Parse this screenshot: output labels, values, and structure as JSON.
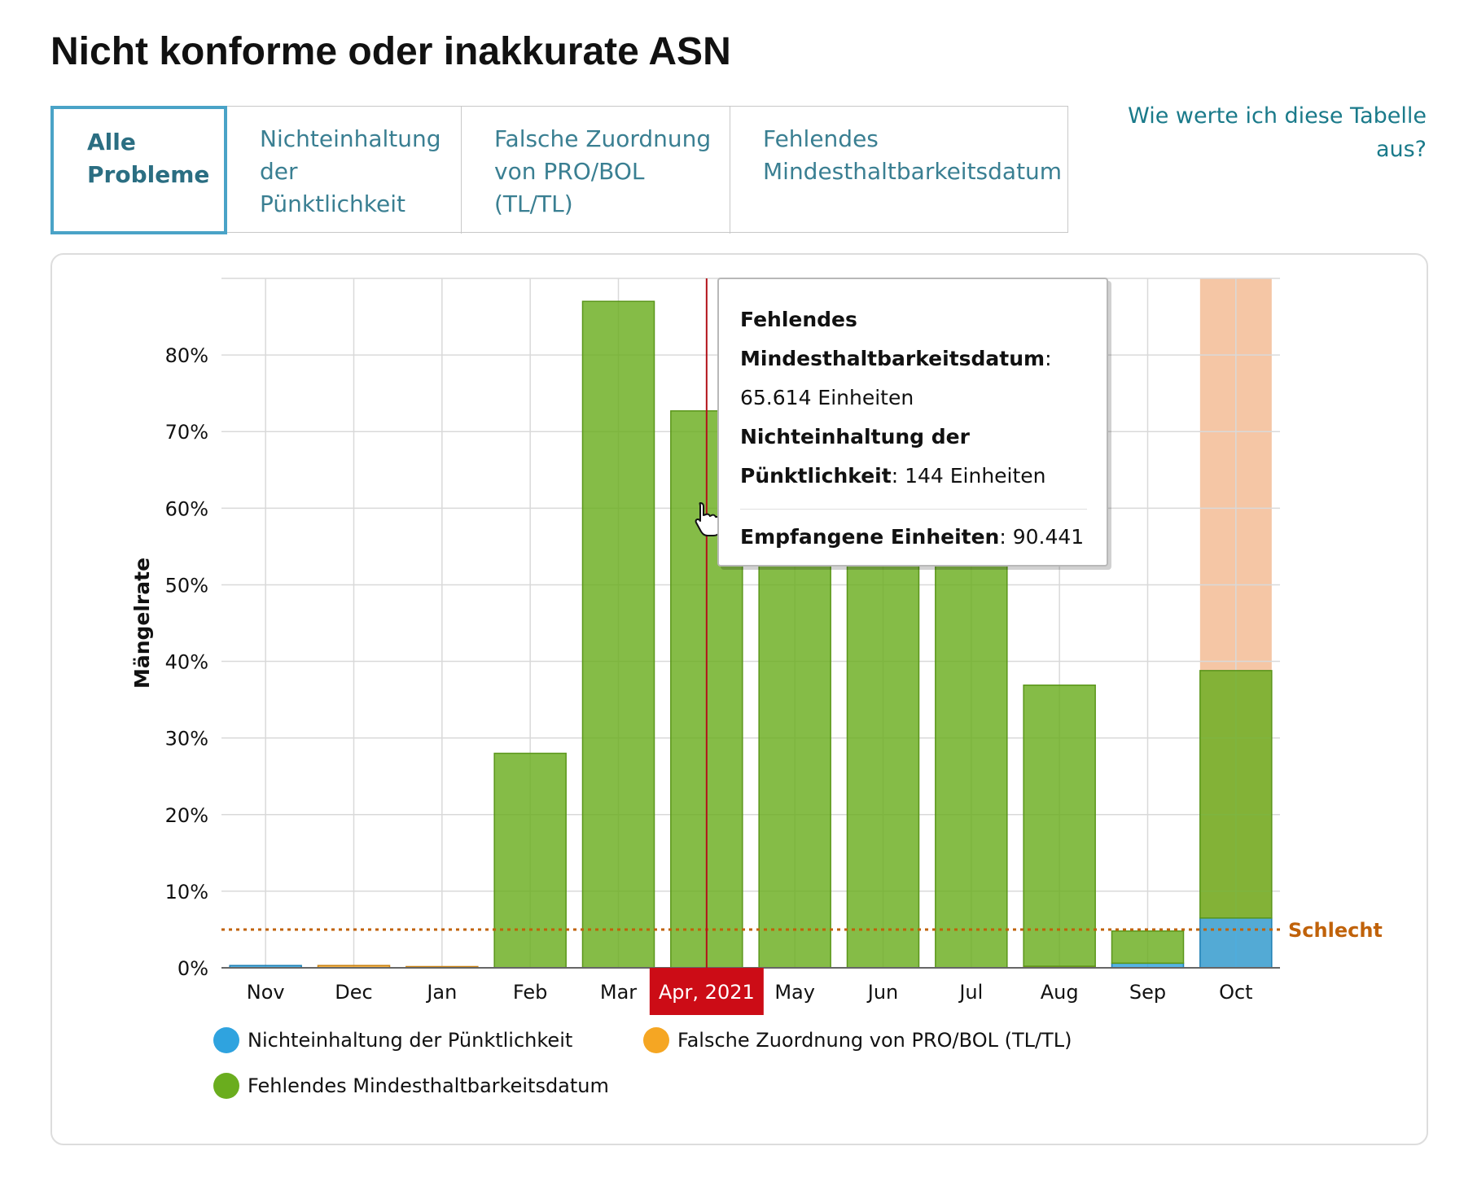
{
  "page": {
    "title": "Nicht konforme oder inakkurate ASN"
  },
  "tabs": [
    {
      "lines": [
        "Alle",
        "Probleme"
      ],
      "active": true
    },
    {
      "lines": [
        "Nichteinhaltung",
        "der",
        "Pünktlichkeit"
      ],
      "active": false
    },
    {
      "lines": [
        "Falsche Zuordnung",
        "von PRO/BOL",
        "(TL/TL)"
      ],
      "active": false
    },
    {
      "lines": [
        "Fehlendes",
        "Mindesthaltbarkeitsdatum"
      ],
      "active": false
    }
  ],
  "help_link": {
    "lines": [
      "Wie werte ich diese Tabelle",
      "aus?"
    ]
  },
  "tooltip": {
    "series1_name_a": "Fehlendes",
    "series1_name_b": "Mindesthaltbarkeitsdatum",
    "series1_value": "65.614 Einheiten",
    "series2_name_a": "Nichteinhaltung der",
    "series2_name_b": "Pünktlichkeit",
    "series2_value": "144 Einheiten",
    "total_label": "Empfangene Einheiten",
    "total_value": "90.441"
  },
  "chart_data": {
    "type": "bar",
    "stacked": true,
    "categories": [
      "Nov",
      "Dec",
      "Jan",
      "Feb",
      "Mar",
      "Apr, 2021",
      "May",
      "Jun",
      "Jul",
      "Aug",
      "Sep",
      "Oct"
    ],
    "selected_category": "Apr, 2021",
    "series": [
      {
        "name": "Nichteinhaltung der Pünktlichkeit",
        "color": "#2fa3df",
        "values": [
          0.3,
          0,
          0,
          0,
          0,
          0,
          0,
          0,
          0,
          0,
          0.6,
          6.5
        ]
      },
      {
        "name": "Falsche Zuordnung von PRO/BOL (TL/TL)",
        "color": "#f5a623",
        "values": [
          0,
          0.3,
          0.1,
          0,
          0,
          0,
          0,
          0,
          0,
          0.2,
          0,
          0
        ]
      },
      {
        "name": "Fehlendes Mindesthaltbarkeitsdatum",
        "color": "#6aad1e",
        "values": [
          0,
          0,
          0,
          28,
          87,
          72.7,
          73,
          73,
          73,
          36.7,
          4.2,
          32.3
        ]
      }
    ],
    "ylabel": "Mängelrate",
    "ylim": [
      0,
      90
    ],
    "yticks": [
      0,
      10,
      20,
      30,
      40,
      50,
      60,
      70,
      80
    ],
    "ytick_labels": [
      "0%",
      "10%",
      "20%",
      "30%",
      "40%",
      "50%",
      "60%",
      "70%",
      "80%"
    ],
    "threshold": {
      "value": 5,
      "label": "Schlecht",
      "color": "#c0620a"
    },
    "highlight_band": {
      "category": "Oct",
      "color": "#f5c6a5"
    },
    "grid": true
  }
}
